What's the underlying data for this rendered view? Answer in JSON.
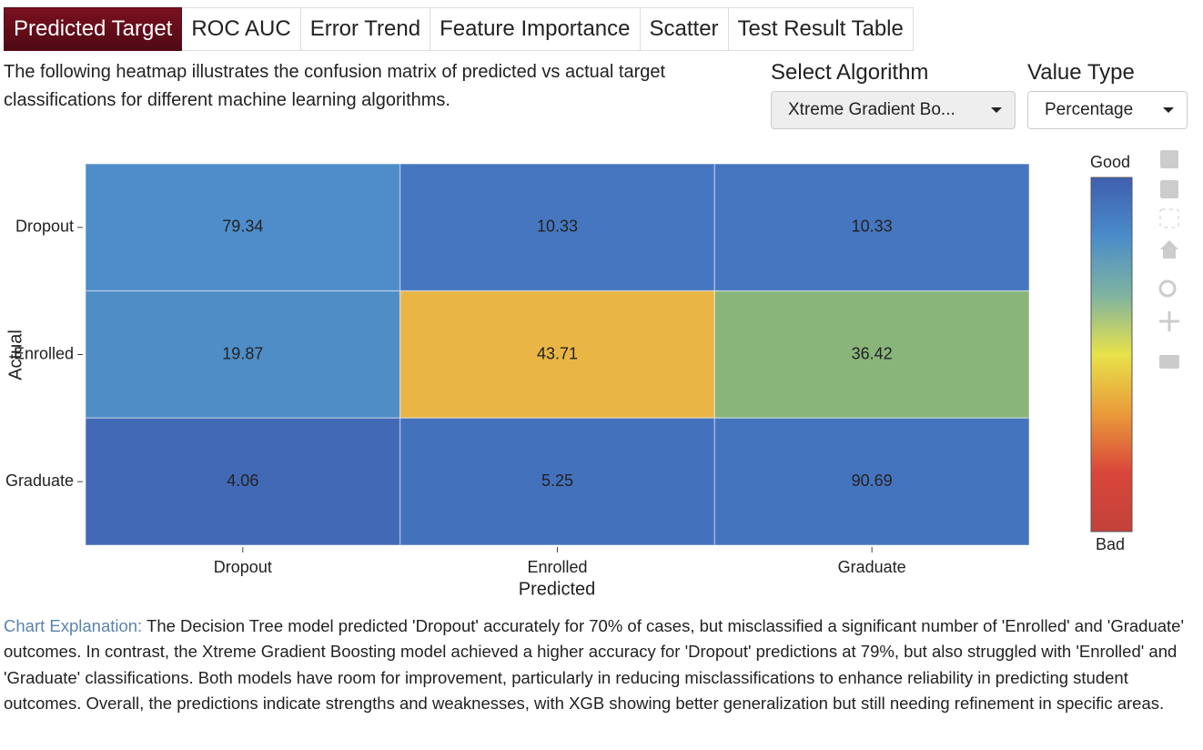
{
  "tabs": [
    "Predicted Target",
    "ROC AUC",
    "Error Trend",
    "Feature Importance",
    "Scatter",
    "Test Result Table"
  ],
  "description": "The following heatmap illustrates the confusion matrix of predicted vs actual target classifications for different machine learning algorithms.",
  "controls": [
    {
      "label": "Select Algorithm",
      "value": "Xtreme Gradient Bo..."
    },
    {
      "label": "Value Type",
      "value": "Percentage"
    }
  ],
  "chart_data": {
    "type": "heatmap",
    "x_label": "Predicted",
    "y_label": "Actual",
    "x_categories": [
      "Dropout",
      "Enrolled",
      "Graduate"
    ],
    "y_categories": [
      "Dropout",
      "Enrolled",
      "Graduate"
    ],
    "values": [
      [
        79.34,
        10.33,
        10.33
      ],
      [
        19.87,
        43.71,
        36.42
      ],
      [
        4.06,
        5.25,
        90.69
      ]
    ],
    "colors": [
      [
        "#4f8dca",
        "#4676c0",
        "#4676c0"
      ],
      [
        "#4f8dc6",
        "#e9b545",
        "#89b57b"
      ],
      [
        "#4169b6",
        "#4471bc",
        "#4574be"
      ]
    ],
    "colorbar_top_label": "Good",
    "colorbar_bottom_label": "Bad",
    "colorscale": [
      "#3f5fae",
      "#4a8cc9",
      "#7fb3a0",
      "#e8e24a",
      "#e99b3a",
      "#d9463a",
      "#c2423a"
    ]
  },
  "explanation": {
    "label": "Chart Explanation:",
    "text": "The Decision Tree model predicted 'Dropout' accurately for 70% of cases, but misclassified a significant number of 'Enrolled' and 'Graduate' outcomes. In contrast, the Xtreme Gradient Boosting model achieved a higher accuracy for 'Dropout' predictions at 79%, but also struggled with 'Enrolled' and 'Graduate' classifications. Both models have room for improvement, particularly in reducing misclassifications to enhance reliability in predicting student outcomes. Overall, the predictions indicate strengths and weaknesses, with XGB showing better generalization but still needing refinement in specific areas."
  }
}
